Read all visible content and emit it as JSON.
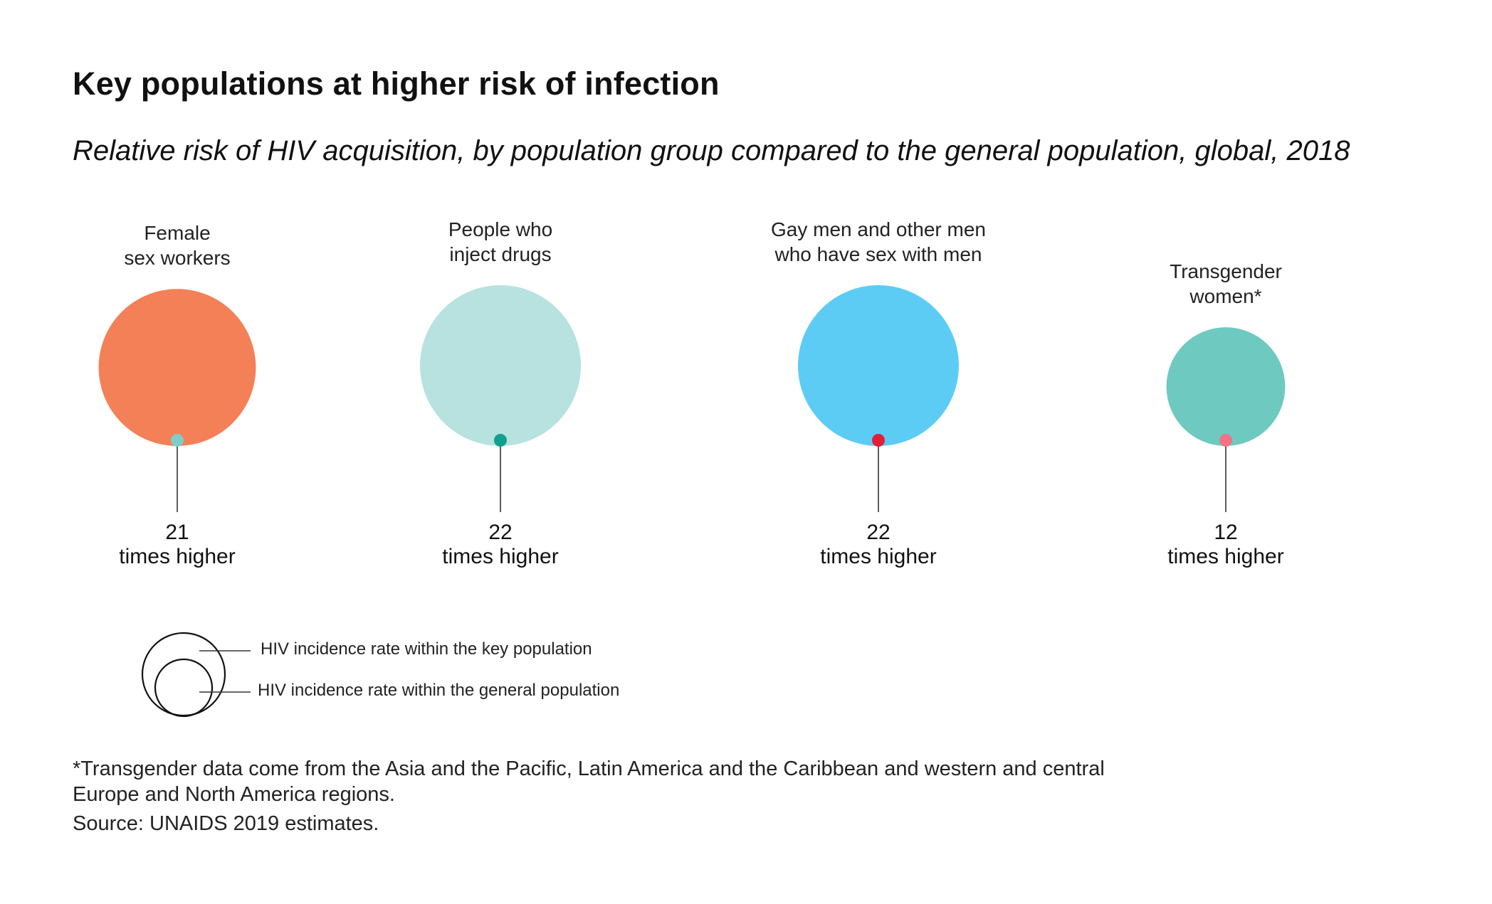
{
  "title": "Key populations at higher risk of infection",
  "subtitle": "Relative risk of HIV acquisition, by population group compared to the general population, global, 2018",
  "chart_data": {
    "type": "bubble",
    "categories": [
      {
        "label_lines": [
          "Female",
          "sex workers"
        ],
        "value": 21,
        "value_text": "21",
        "unit_text": "times higher",
        "outer_color": "#F48057",
        "inner_color": "#7FCDC5"
      },
      {
        "label_lines": [
          "People who",
          "inject drugs"
        ],
        "value": 22,
        "value_text": "22",
        "unit_text": "times higher",
        "outer_color": "#B7E2E0",
        "inner_color": "#12A08E"
      },
      {
        "label_lines": [
          "Gay men and other men",
          "who have sex with men"
        ],
        "value": 22,
        "value_text": "22",
        "unit_text": "times higher",
        "outer_color": "#5DCCF5",
        "inner_color": "#E21F36"
      },
      {
        "label_lines": [
          "Transgender",
          "women*"
        ],
        "value": 12,
        "value_text": "12",
        "unit_text": "times higher",
        "outer_color": "#6ECAC0",
        "inner_color": "#F07486"
      }
    ]
  },
  "legend": {
    "key_population": "HIV incidence rate within the key population",
    "general_population": "HIV incidence rate within the general population"
  },
  "footnote": "*Transgender data come from the Asia and the Pacific, Latin America and the Caribbean and western and central Europe and North America regions.",
  "source": "Source: UNAIDS 2019 estimates."
}
